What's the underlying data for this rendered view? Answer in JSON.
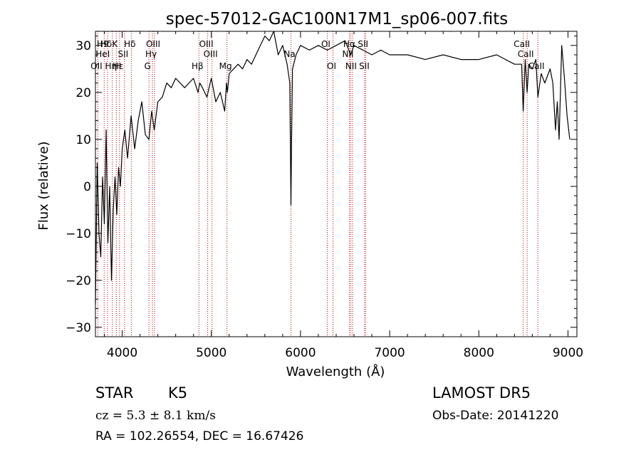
{
  "chart_data": {
    "type": "line",
    "title": "spec-57012-GAC100N17M1_sp06-007.fits",
    "xlabel": "Wavelength (Å)",
    "ylabel": "Flux (relative)",
    "xlim": [
      3700,
      9100
    ],
    "ylim": [
      -32,
      33
    ],
    "xticks": [
      4000,
      5000,
      6000,
      7000,
      8000,
      9000
    ],
    "yticks": [
      -30,
      -20,
      -10,
      0,
      10,
      20,
      30
    ],
    "grid": false,
    "series": [
      {
        "x": [
          3700,
          3720,
          3740,
          3760,
          3780,
          3800,
          3820,
          3840,
          3860,
          3880,
          3900,
          3920,
          3940,
          3960,
          3980,
          4000,
          4030,
          4060,
          4100,
          4140,
          4180,
          4220,
          4260,
          4300,
          4330,
          4360,
          4400,
          4450,
          4500,
          4550,
          4600,
          4650,
          4700,
          4750,
          4800,
          4850,
          4870,
          4900,
          4950,
          5000,
          5050,
          5100,
          5150,
          5170,
          5180,
          5200,
          5250,
          5300,
          5350,
          5400,
          5450,
          5500,
          5550,
          5600,
          5650,
          5700,
          5750,
          5800,
          5850,
          5880,
          5893,
          5900,
          5910,
          5950,
          6000,
          6100,
          6200,
          6300,
          6400,
          6500,
          6563,
          6600,
          6700,
          6800,
          6900,
          7000,
          7200,
          7400,
          7600,
          7800,
          8000,
          8200,
          8400,
          8480,
          8498,
          8520,
          8542,
          8560,
          8600,
          8640,
          8662,
          8700,
          8740,
          8780,
          8800,
          8830,
          8860,
          8880,
          8900,
          8930,
          8960,
          8990,
          9020
        ],
        "y": [
          -25,
          5,
          -10,
          -15,
          2,
          -8,
          12,
          -12,
          0,
          -20,
          -5,
          2,
          -6,
          4,
          0,
          8,
          12,
          6,
          15,
          8,
          14,
          18,
          11,
          10,
          16,
          12,
          18,
          19,
          22,
          21,
          23,
          22,
          21,
          22,
          23,
          20,
          22,
          21,
          19,
          23,
          18,
          20,
          16,
          22,
          20,
          24,
          25,
          26,
          25,
          27,
          26,
          28,
          30,
          32,
          31,
          33,
          28,
          30,
          26,
          22,
          -4,
          10,
          25,
          28,
          30,
          29,
          30,
          29,
          30,
          31,
          28,
          30,
          29,
          28,
          29,
          28,
          28,
          27,
          28,
          27,
          27,
          28,
          26,
          26,
          16,
          27,
          20,
          26,
          25,
          27,
          19,
          24,
          22,
          24,
          25,
          22,
          12,
          18,
          10,
          30,
          23,
          15,
          10
        ]
      }
    ],
    "line_markers": [
      {
        "wave": 3727,
        "labels": [
          "OII"
        ],
        "tier": 2
      },
      {
        "wave": 3798,
        "labels": [
          "H9",
          "HeI"
        ],
        "tier": 0
      },
      {
        "wave": 3835,
        "labels": [
          "Hδ"
        ],
        "tier": 0
      },
      {
        "wave": 3889,
        "labels": [
          "Hη"
        ],
        "tier": 2
      },
      {
        "wave": 3934,
        "labels": [
          "K"
        ],
        "tier": 0
      },
      {
        "wave": 3970,
        "labels": [
          "Hε",
          "H"
        ],
        "tier": 2
      },
      {
        "wave": 4026,
        "labels": [
          "SII"
        ],
        "tier": 1
      },
      {
        "wave": 4102,
        "labels": [
          "Hδ"
        ],
        "tier": 0
      },
      {
        "wave": 4300,
        "labels": [
          "G"
        ],
        "tier": 2
      },
      {
        "wave": 4340,
        "labels": [
          "Hγ"
        ],
        "tier": 1
      },
      {
        "wave": 4363,
        "labels": [
          "OIII"
        ],
        "tier": 0
      },
      {
        "wave": 4861,
        "labels": [
          "Hβ"
        ],
        "tier": 2
      },
      {
        "wave": 4959,
        "labels": [
          "OIII"
        ],
        "tier": 0
      },
      {
        "wave": 5007,
        "labels": [
          "OIII"
        ],
        "tier": 1
      },
      {
        "wave": 5175,
        "labels": [
          "Mg"
        ],
        "tier": 2
      },
      {
        "wave": 5893,
        "labels": [
          "Na"
        ],
        "tier": 1
      },
      {
        "wave": 6300,
        "labels": [
          "OI"
        ],
        "tier": 0
      },
      {
        "wave": 6364,
        "labels": [
          "OI"
        ],
        "tier": 2
      },
      {
        "wave": 6548,
        "labels": [
          "NII"
        ],
        "tier": 1
      },
      {
        "wave": 6563,
        "labels": [
          "Hα"
        ],
        "tier": 0
      },
      {
        "wave": 6583,
        "labels": [
          "NII"
        ],
        "tier": 2
      },
      {
        "wave": 6717,
        "labels": [
          "SII"
        ],
        "tier": 0
      },
      {
        "wave": 6731,
        "labels": [
          "SII"
        ],
        "tier": 2
      },
      {
        "wave": 8498,
        "labels": [
          "CaII"
        ],
        "tier": 0
      },
      {
        "wave": 8542,
        "labels": [
          "CaII"
        ],
        "tier": 1
      },
      {
        "wave": 8662,
        "labels": [
          "CaII"
        ],
        "tier": 2
      }
    ]
  },
  "info": {
    "class": "STAR",
    "subclass": "K5",
    "cz": "cz = 5.3 ± 8.1 km/s",
    "coords": "RA = 102.26554, DEC =  16.67426",
    "survey": "LAMOST DR5",
    "obs_date": "Obs-Date: 20141220"
  }
}
